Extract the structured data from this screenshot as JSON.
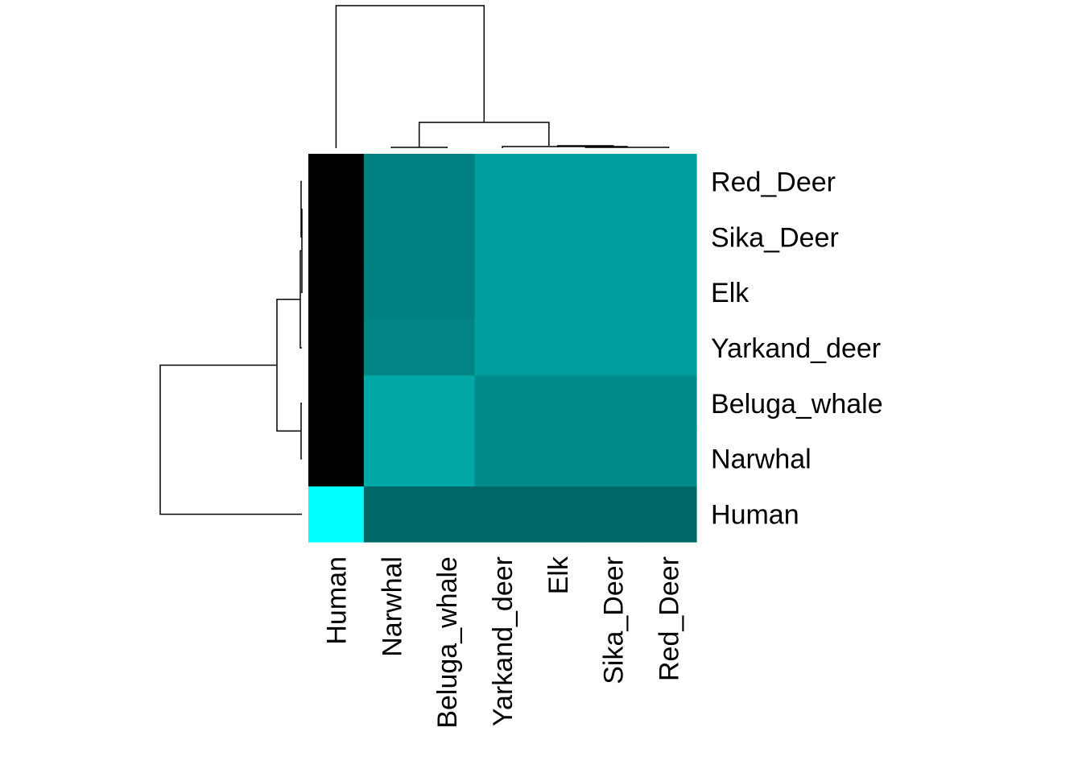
{
  "chart_data": {
    "type": "heatmap",
    "title": "",
    "xlabel": "",
    "ylabel": "",
    "legend": "none",
    "color_low": "#00ffff",
    "color_high": "#000000",
    "columns": [
      "Human",
      "Narwhal",
      "Beluga_whale",
      "Yarkand_deer",
      "Elk",
      "Sika_Deer",
      "Red_Deer"
    ],
    "rows": [
      "Red_Deer",
      "Sika_Deer",
      "Elk",
      "Yarkand_deer",
      "Beluga_whale",
      "Narwhal",
      "Human"
    ],
    "values": [
      [
        1.0,
        0.5,
        0.5,
        0.38,
        0.38,
        0.38,
        0.38
      ],
      [
        1.0,
        0.5,
        0.5,
        0.38,
        0.38,
        0.38,
        0.38
      ],
      [
        1.0,
        0.5,
        0.5,
        0.38,
        0.38,
        0.38,
        0.38
      ],
      [
        1.0,
        0.48,
        0.48,
        0.38,
        0.38,
        0.38,
        0.38
      ],
      [
        1.0,
        0.34,
        0.34,
        0.46,
        0.46,
        0.46,
        0.46
      ],
      [
        1.0,
        0.34,
        0.34,
        0.46,
        0.46,
        0.46,
        0.46
      ],
      [
        0.0,
        0.6,
        0.6,
        0.6,
        0.6,
        0.6,
        0.6
      ]
    ],
    "col_dendrogram": {
      "order": [
        "Human",
        "Narwhal",
        "Beluga_whale",
        "Yarkand_deer",
        "Elk",
        "Sika_Deer",
        "Red_Deer"
      ],
      "merges": [
        {
          "left": "Elk",
          "right": "Sika_Deer",
          "height": 0.011
        },
        {
          "left": "Elk+Sika_Deer",
          "right": "Red_Deer",
          "height": 0.004
        },
        {
          "left": "Yarkand_deer",
          "right": "Elk+Sika_Deer+Red_Deer",
          "height": 0.007
        },
        {
          "left": "Narwhal",
          "right": "Beluga_whale",
          "height": 0.008
        },
        {
          "left": "Narwhal+Beluga_whale",
          "right": "Deer",
          "height": 0.18
        },
        {
          "left": "Human",
          "right": "Rest",
          "height": 1.0
        }
      ]
    },
    "row_dendrogram": {
      "order": [
        "Red_Deer",
        "Sika_Deer",
        "Elk",
        "Yarkand_deer",
        "Beluga_whale",
        "Narwhal",
        "Human"
      ],
      "merges": [
        {
          "left": "Red_Deer",
          "right": "Sika_Deer",
          "height": 0.011
        },
        {
          "left": "Red_Deer+Sika_Deer",
          "right": "Elk",
          "height": 0.004
        },
        {
          "left": "Deer3",
          "right": "Yarkand_deer",
          "height": 0.007
        },
        {
          "left": "Beluga_whale",
          "right": "Narwhal",
          "height": 0.008
        },
        {
          "left": "Deer",
          "right": "Whales",
          "height": 0.18
        },
        {
          "left": "Rest",
          "right": "Human",
          "height": 1.0
        }
      ]
    }
  }
}
